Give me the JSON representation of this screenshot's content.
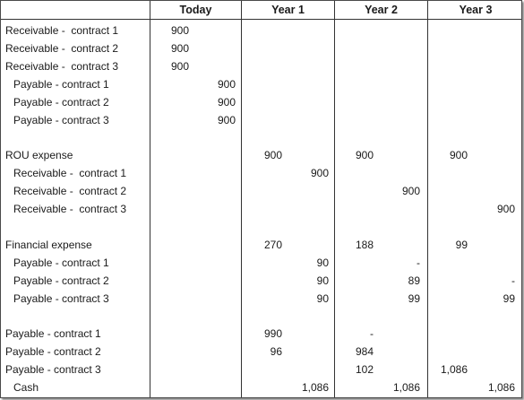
{
  "headers": [
    "Today",
    "Year 1",
    "Year 2",
    "Year 3"
  ],
  "rows": [
    {
      "label": "Receivable -  contract 1",
      "indent": 0,
      "vals": [
        "900",
        "",
        "",
        "",
        "",
        "",
        "",
        ""
      ]
    },
    {
      "label": "Receivable -  contract 2",
      "indent": 0,
      "vals": [
        "900",
        "",
        "",
        "",
        "",
        "",
        "",
        ""
      ]
    },
    {
      "label": "Receivable -  contract 3",
      "indent": 0,
      "vals": [
        "900",
        "",
        "",
        "",
        "",
        "",
        "",
        ""
      ]
    },
    {
      "label": "Payable - contract 1",
      "indent": 1,
      "vals": [
        "",
        "900",
        "",
        "",
        "",
        "",
        "",
        ""
      ]
    },
    {
      "label": "Payable - contract 2",
      "indent": 1,
      "vals": [
        "",
        "900",
        "",
        "",
        "",
        "",
        "",
        ""
      ]
    },
    {
      "label": "Payable - contract 3",
      "indent": 1,
      "vals": [
        "",
        "900",
        "",
        "",
        "",
        "",
        "",
        ""
      ]
    },
    {
      "label": "",
      "indent": 0,
      "vals": [
        "",
        "",
        "",
        "",
        "",
        "",
        "",
        ""
      ]
    },
    {
      "label": "ROU expense",
      "indent": 0,
      "vals": [
        "",
        "",
        "900",
        "",
        "900",
        "",
        "900",
        ""
      ]
    },
    {
      "label": "Receivable -  contract 1",
      "indent": 1,
      "vals": [
        "",
        "",
        "",
        "900",
        "",
        "",
        "",
        ""
      ]
    },
    {
      "label": "Receivable -  contract 2",
      "indent": 1,
      "vals": [
        "",
        "",
        "",
        "",
        "",
        "900",
        "",
        ""
      ]
    },
    {
      "label": "Receivable -  contract 3",
      "indent": 1,
      "vals": [
        "",
        "",
        "",
        "",
        "",
        "",
        "",
        "900"
      ]
    },
    {
      "label": "",
      "indent": 0,
      "vals": [
        "",
        "",
        "",
        "",
        "",
        "",
        "",
        ""
      ]
    },
    {
      "label": "Financial expense",
      "indent": 0,
      "vals": [
        "",
        "",
        "270",
        "",
        "188",
        "",
        "99",
        ""
      ]
    },
    {
      "label": "Payable - contract 1",
      "indent": 1,
      "vals": [
        "",
        "",
        "",
        "90",
        "",
        "-",
        "",
        ""
      ]
    },
    {
      "label": "Payable - contract 2",
      "indent": 1,
      "vals": [
        "",
        "",
        "",
        "90",
        "",
        "89",
        "",
        "-"
      ]
    },
    {
      "label": "Payable - contract 3",
      "indent": 1,
      "vals": [
        "",
        "",
        "",
        "90",
        "",
        "99",
        "",
        "99"
      ]
    },
    {
      "label": "",
      "indent": 0,
      "vals": [
        "",
        "",
        "",
        "",
        "",
        "",
        "",
        ""
      ]
    },
    {
      "label": "Payable - contract 1",
      "indent": 0,
      "vals": [
        "",
        "",
        "990",
        "",
        "-",
        "",
        "",
        ""
      ]
    },
    {
      "label": "Payable - contract 2",
      "indent": 0,
      "vals": [
        "",
        "",
        "96",
        "",
        "984",
        "",
        "",
        ""
      ]
    },
    {
      "label": "Payable - contract 3",
      "indent": 0,
      "vals": [
        "",
        "",
        "",
        "",
        "102",
        "",
        "1,086",
        ""
      ]
    },
    {
      "label": "Cash",
      "indent": 1,
      "vals": [
        "",
        "",
        "",
        "1,086",
        "",
        "1,086",
        "",
        "1,086"
      ]
    }
  ]
}
